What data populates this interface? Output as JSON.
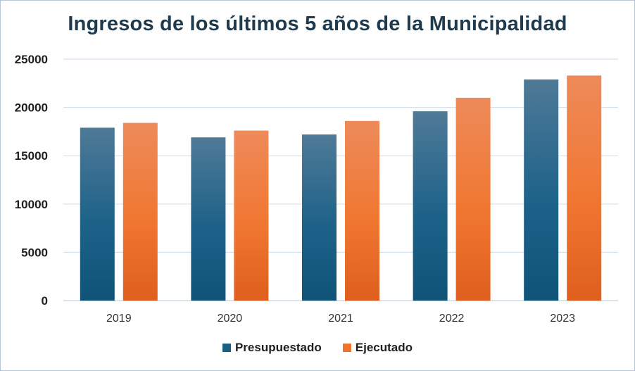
{
  "chart_data": {
    "type": "bar",
    "title": "Ingresos de los últimos 5 años de la Municipalidad",
    "xlabel": "",
    "ylabel": "",
    "categories": [
      "2019",
      "2020",
      "2021",
      "2022",
      "2023"
    ],
    "series": [
      {
        "name": "Presupuestado",
        "values": [
          17900,
          16900,
          17200,
          19600,
          22900
        ],
        "color": "#1b5f85"
      },
      {
        "name": "Ejecutado",
        "values": [
          18400,
          17600,
          18600,
          21000,
          23300
        ],
        "color": "#ee7430"
      }
    ],
    "ylim": [
      0,
      25000
    ],
    "yticks": [
      "0",
      "5000",
      "10000",
      "15000",
      "20000",
      "25000"
    ],
    "grid": true,
    "legend_position": "bottom"
  }
}
